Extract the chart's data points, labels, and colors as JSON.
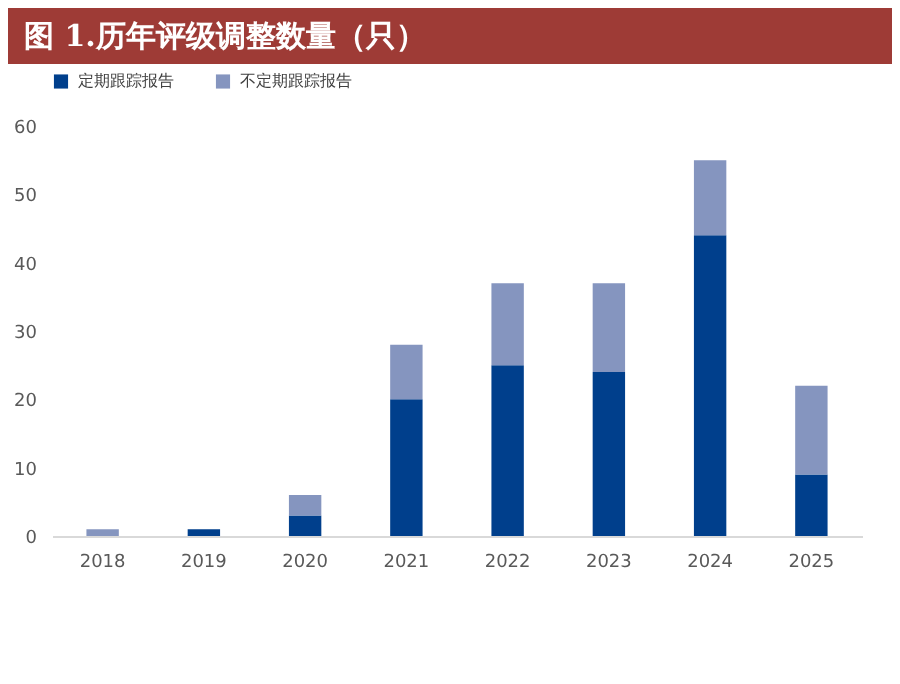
{
  "chart_data": {
    "type": "bar",
    "title": "图 1.历年评级调整数量（只）",
    "stacked": true,
    "legend": "top",
    "categories": [
      "2018",
      "2019",
      "2020",
      "2021",
      "2022",
      "2023",
      "2024",
      "2025"
    ],
    "series": [
      {
        "name": "定期跟踪报告",
        "color": "#003f8c",
        "values": [
          0,
          1,
          3,
          20,
          25,
          24,
          44,
          9
        ]
      },
      {
        "name": "不定期跟踪报告",
        "color": "#8595bf",
        "values": [
          1,
          0,
          3,
          8,
          12,
          13,
          11,
          13
        ]
      }
    ],
    "ylim": [
      0,
      60
    ],
    "yticks": [
      0,
      10,
      20,
      30,
      40,
      50,
      60
    ],
    "grid": false
  }
}
